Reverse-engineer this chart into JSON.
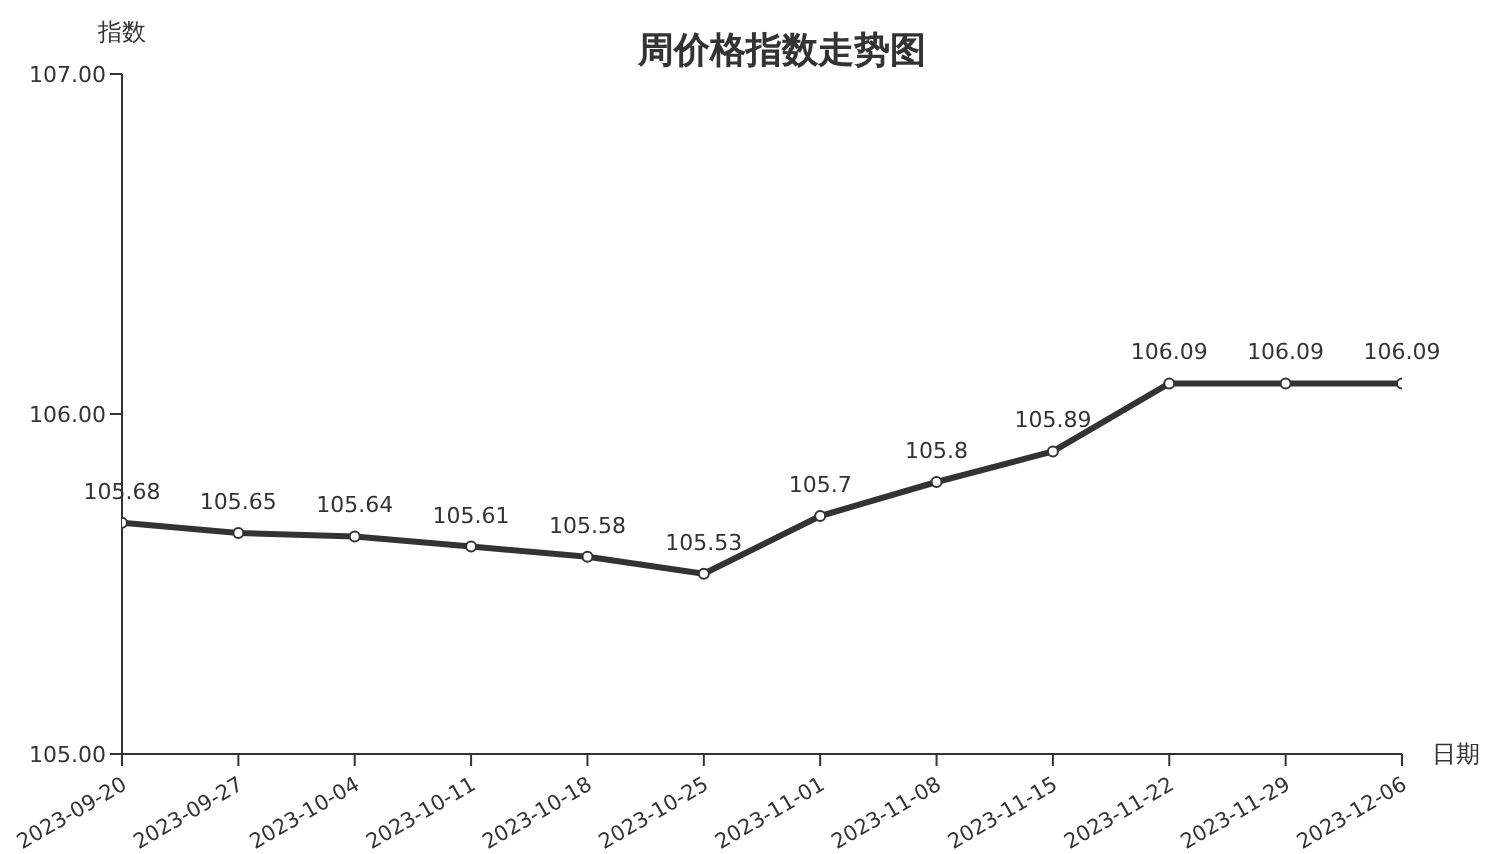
{
  "chart_data": {
    "type": "line",
    "title": "周价格指数走势图",
    "xlabel": "日期",
    "ylabel": "指数",
    "categories": [
      "2023-09-20",
      "2023-09-27",
      "2023-10-04",
      "2023-10-11",
      "2023-10-18",
      "2023-10-25",
      "2023-11-01",
      "2023-11-08",
      "2023-11-15",
      "2023-11-22",
      "2023-11-29",
      "2023-12-06"
    ],
    "series": [
      {
        "color": "#333333",
        "values": [
          105.68,
          105.65,
          105.64,
          105.61,
          105.58,
          105.53,
          105.7,
          105.8,
          105.89,
          106.09,
          106.09,
          106.09
        ]
      }
    ],
    "ylim": [
      105,
      107
    ],
    "yticks": [
      {
        "value": 105,
        "label": "105.00"
      },
      {
        "value": 106,
        "label": "106.00"
      },
      {
        "value": 107,
        "label": "107.00"
      }
    ],
    "data_labels": true,
    "marker": "circle",
    "line_style": "solid",
    "grid": false
  }
}
